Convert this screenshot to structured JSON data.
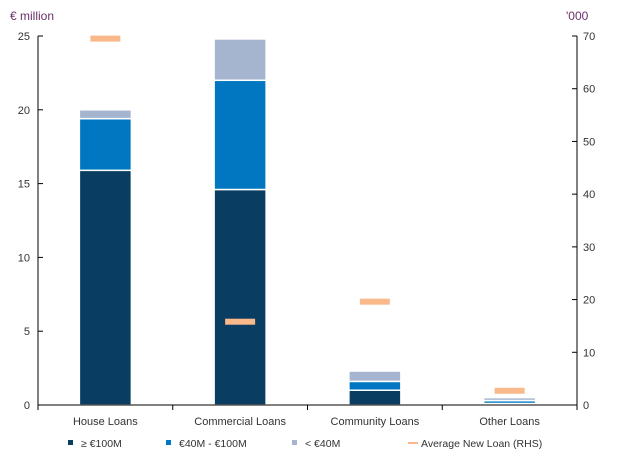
{
  "chart_data": {
    "type": "bar",
    "stacked": true,
    "left_unit_label": "€ million",
    "right_unit_label": "'000",
    "categories": [
      "House Loans",
      "Commercial Loans",
      "Community Loans",
      "Other Loans"
    ],
    "series": [
      {
        "name": "≥ €100M",
        "axis": "left",
        "color": "#0a3d62",
        "values": [
          15.9,
          14.6,
          1.0,
          0.1
        ]
      },
      {
        "name": "€40M - €100M",
        "axis": "left",
        "color": "#0077c0",
        "values": [
          3.5,
          7.4,
          0.6,
          0.2
        ]
      },
      {
        "name": "< €40M",
        "axis": "left",
        "color": "#a5b4cf",
        "values": [
          0.6,
          2.8,
          0.7,
          0.2
        ]
      },
      {
        "name": "Average New Loan (RHS)",
        "axis": "right",
        "type": "marker",
        "color": "#f9b98a",
        "values": [
          69.5,
          15.8,
          19.6,
          2.7
        ]
      }
    ],
    "y_left": {
      "min": 0,
      "max": 25,
      "ticks": [
        0,
        5,
        10,
        15,
        20,
        25
      ]
    },
    "y_right": {
      "min": 0,
      "max": 70,
      "ticks": [
        0,
        10,
        20,
        30,
        40,
        50,
        60,
        70
      ]
    },
    "legend_position": "bottom",
    "grid": false
  }
}
